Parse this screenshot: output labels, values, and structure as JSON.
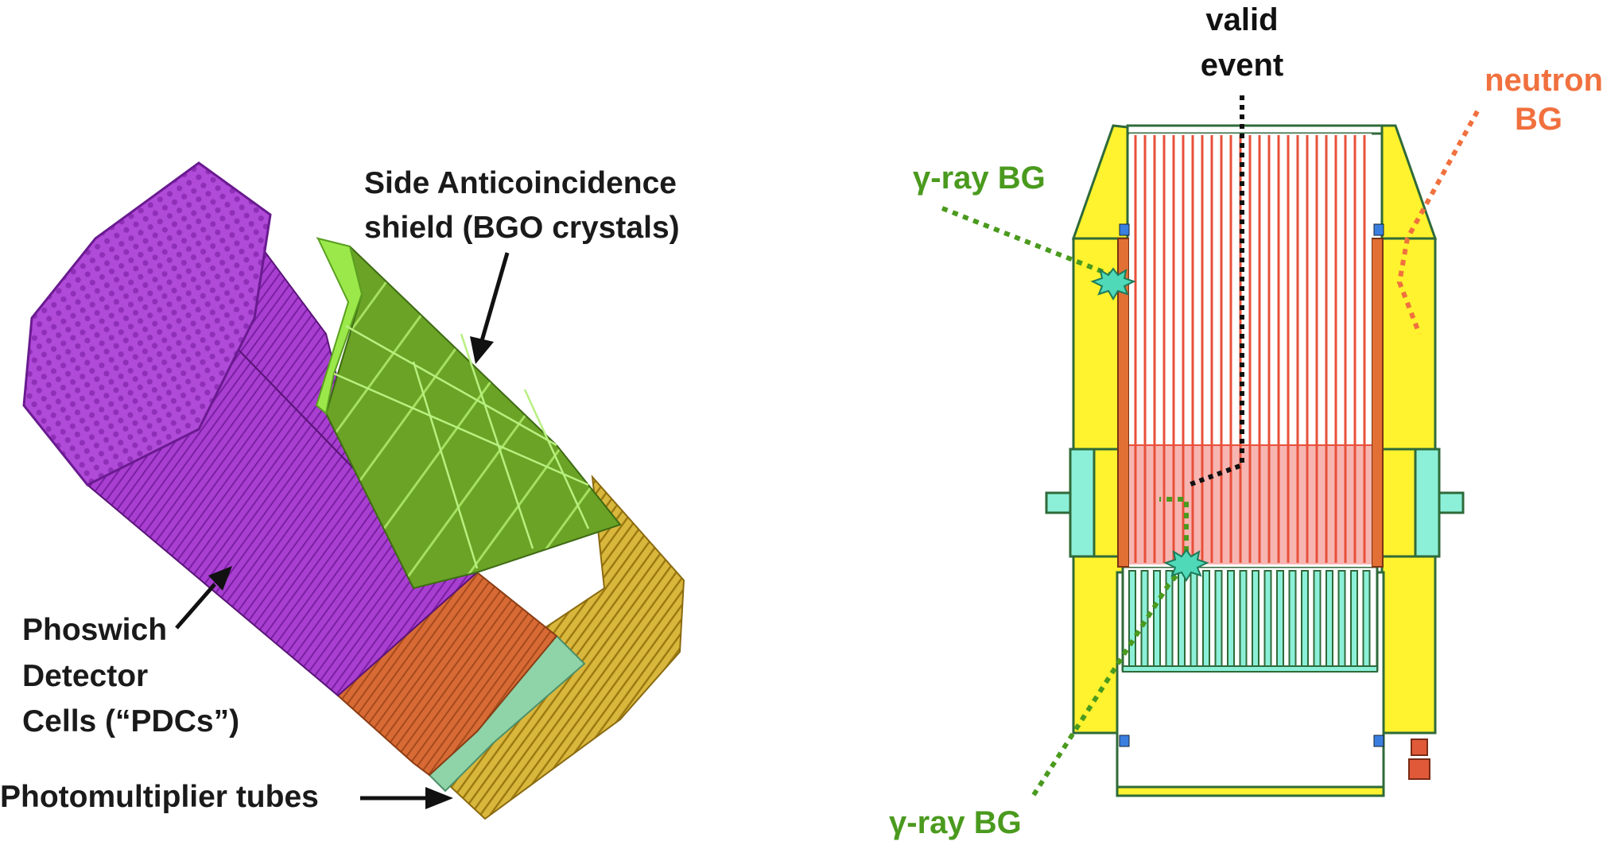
{
  "left_panel": {
    "side_shield_label_line1": "Side Anticoincidence",
    "side_shield_label_line2": "shield (BGO crystals)",
    "pdc_label_line1": "Phoswich",
    "pdc_label_line2": "Detector",
    "pdc_label_line3": "Cells (“PDCs”)",
    "pmt_label": "Photomultiplier tubes"
  },
  "right_panel": {
    "valid_event_line1": "valid",
    "valid_event_line2": "event",
    "neutron_line1": "neutron",
    "neutron_line2": "BG",
    "gamma_top": "γ-ray BG",
    "gamma_bottom": "γ-ray BG"
  },
  "colors": {
    "pdc_purple": "#b04ad8",
    "bgo_green": "#6aa325",
    "bgo_light_green": "#9be84a",
    "orange": "#d96a34",
    "pmt_yellow": "#d8b53a",
    "shield_yellow": "#fff22e",
    "teal": "#8cf0d8",
    "red_rods": "#e8503a",
    "label_green": "#4a9a1e",
    "label_orange": "#f0703e"
  }
}
